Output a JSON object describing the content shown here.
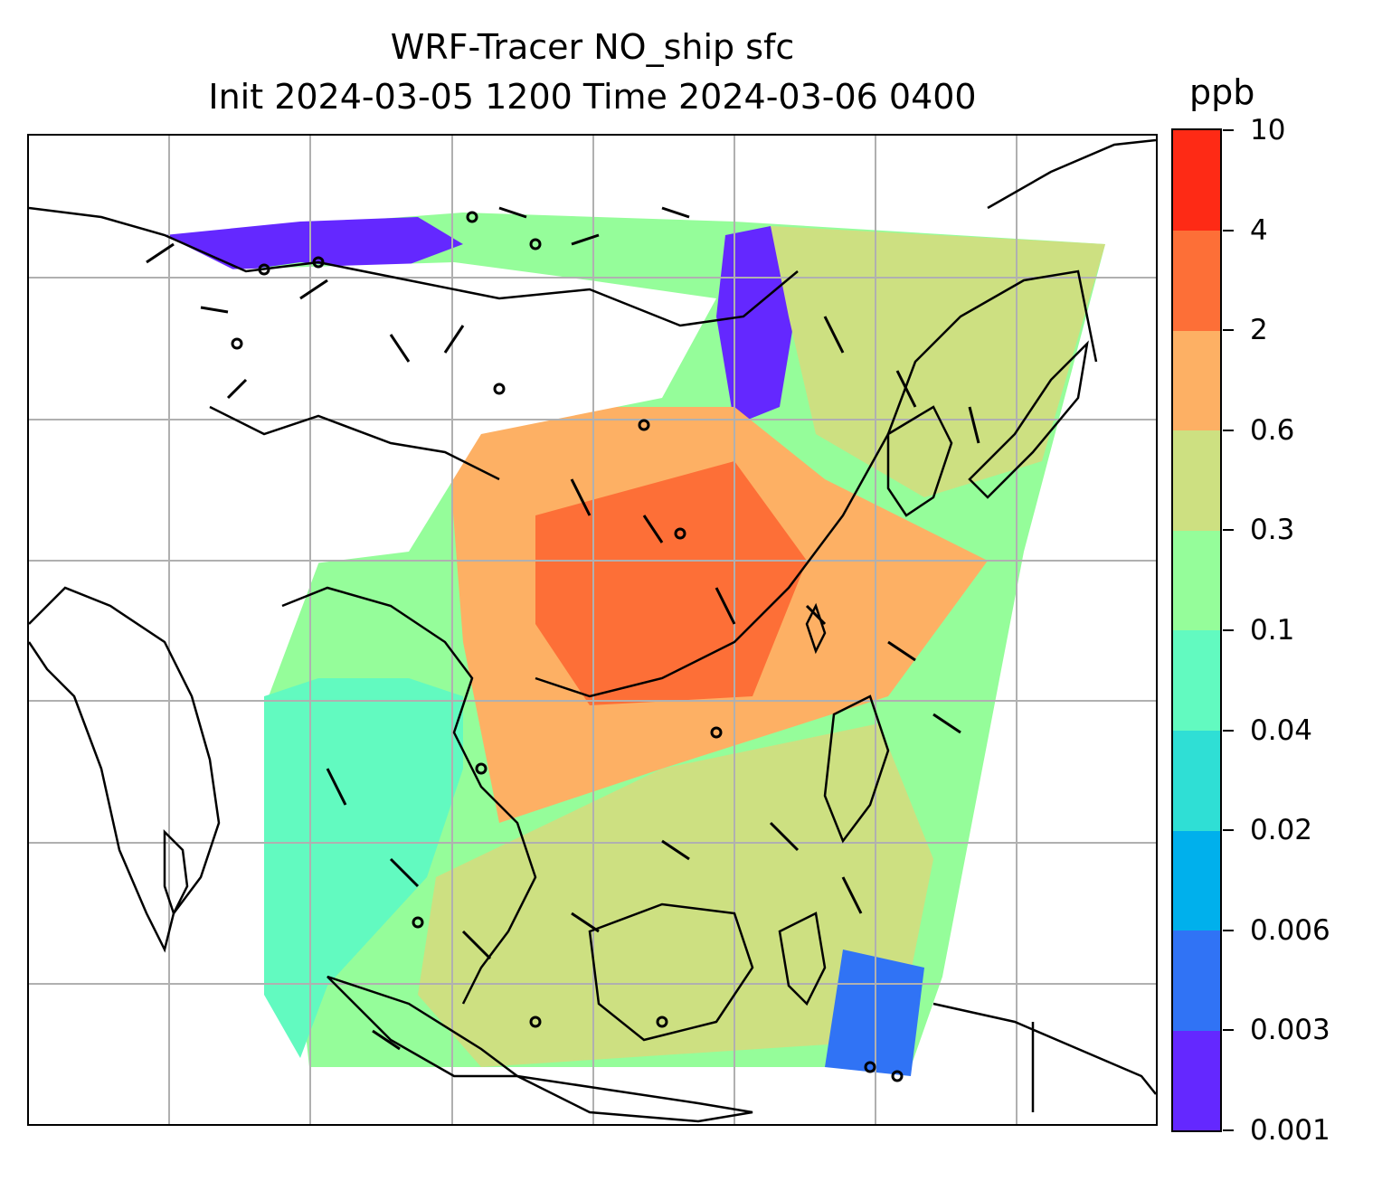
{
  "title": {
    "line1": "WRF-Tracer NO_ship sfc",
    "line2": "Init 2024-03-05 1200 Time 2024-03-06 0400"
  },
  "colorbar": {
    "unit": "ppb",
    "levels": [
      "0.001",
      "0.003",
      "0.006",
      "0.02",
      "0.04",
      "0.1",
      "0.3",
      "0.6",
      "2",
      "4",
      "10"
    ],
    "colors": [
      "#6428ff",
      "#3073f5",
      "#00b0ec",
      "#2fdfd5",
      "#62fac0",
      "#95fd9a",
      "#cde081",
      "#fdb064",
      "#fd6f37",
      "#fe2a15"
    ]
  },
  "map": {
    "gridline_color": "#b0b0b0",
    "coastline_color": "#000000",
    "barb_color": "#000000",
    "no_data_color": "#ffffff"
  }
}
